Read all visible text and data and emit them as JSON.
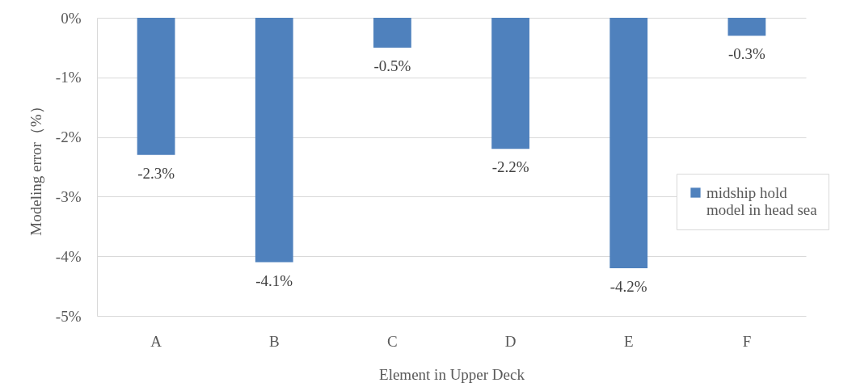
{
  "chart_data": {
    "type": "bar",
    "xlabel": "Element in Upper Deck",
    "ylabel": "Modeling error（%）",
    "categories": [
      "A",
      "B",
      "C",
      "D",
      "E",
      "F"
    ],
    "series": [
      {
        "name": "midship hold model in head sea",
        "color": "#4f81bd",
        "values": [
          -2.3,
          -4.1,
          -0.5,
          -2.2,
          -4.2,
          -0.3
        ],
        "value_labels": [
          "-2.3%",
          "-4.1%",
          "-0.5%",
          "-2.2%",
          "-4.2%",
          "-0.3%"
        ]
      }
    ],
    "ylim": [
      -5,
      0
    ],
    "yticks": [
      {
        "value": 0,
        "label": "0%"
      },
      {
        "value": -1,
        "label": "-1%"
      },
      {
        "value": -2,
        "label": "-2%"
      },
      {
        "value": -3,
        "label": "-3%"
      },
      {
        "value": -4,
        "label": "-4%"
      },
      {
        "value": -5,
        "label": "-5%"
      }
    ],
    "grid": "y",
    "legend": "right"
  }
}
